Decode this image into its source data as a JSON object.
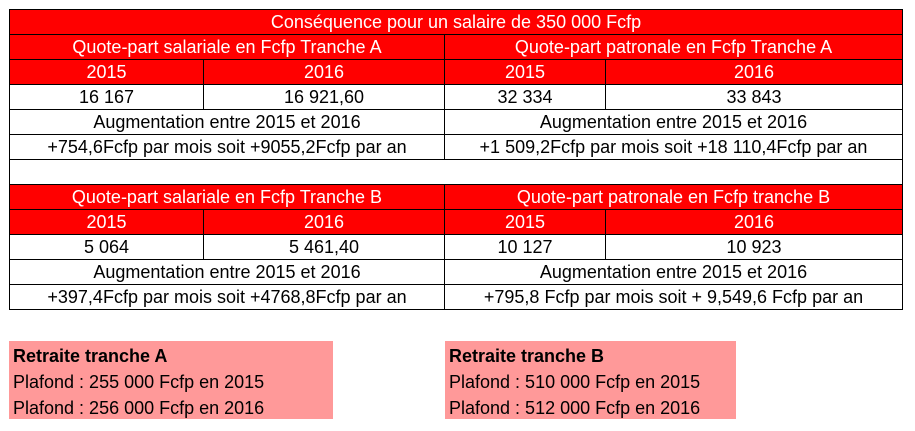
{
  "table": {
    "title": "Conséquence pour un salaire de 350 000 Fcfp",
    "tranche_a": {
      "salariale_header": "Quote-part salariale en Fcfp Tranche A",
      "patronale_header": "Quote-part patronale en Fcfp  Tranche A",
      "years": [
        "2015",
        "2016",
        "2015",
        "2016"
      ],
      "values": [
        "16 167",
        "16 921,60",
        "32 334",
        "33 843"
      ],
      "augmentation_label_left": "Augmentation entre 2015 et 2016",
      "augmentation_label_right": "Augmentation entre 2015 et 2016",
      "augmentation_left": "+754,6Fcfp par mois soit +9055,2Fcfp par an",
      "augmentation_right": "+1 509,2Fcfp par mois soit +18 110,4Fcfp par an"
    },
    "tranche_b": {
      "salariale_header": "Quote-part salariale en Fcfp Tranche B",
      "patronale_header": "Quote-part patronale en Fcfp tranche B",
      "years": [
        "2015",
        "2016",
        "2015",
        "2016"
      ],
      "values": [
        "5 064",
        "5 461,40",
        "10 127",
        "10 923"
      ],
      "augmentation_label_left": "Augmentation entre 2015 et 2016",
      "augmentation_label_right": "Augmentation entre 2015 et 2016",
      "augmentation_left": "+397,4Fcfp par mois soit +4768,8Fcfp par an",
      "augmentation_right": "+795,8 Fcfp par mois soit + 9,549,6 Fcfp par an"
    }
  },
  "retraite_a": {
    "title": "Retraite tranche A",
    "line1": "Plafond : 255 000 Fcfp en 2015",
    "line2": "Plafond : 256 000 Fcfp en 2016"
  },
  "retraite_b": {
    "title": "Retraite tranche B",
    "line1": "Plafond : 510 000 Fcfp en 2015",
    "line2": "Plafond : 512 000 Fcfp en 2016"
  },
  "colors": {
    "header_red": "#ff0000",
    "box_pink": "#ff9999"
  }
}
